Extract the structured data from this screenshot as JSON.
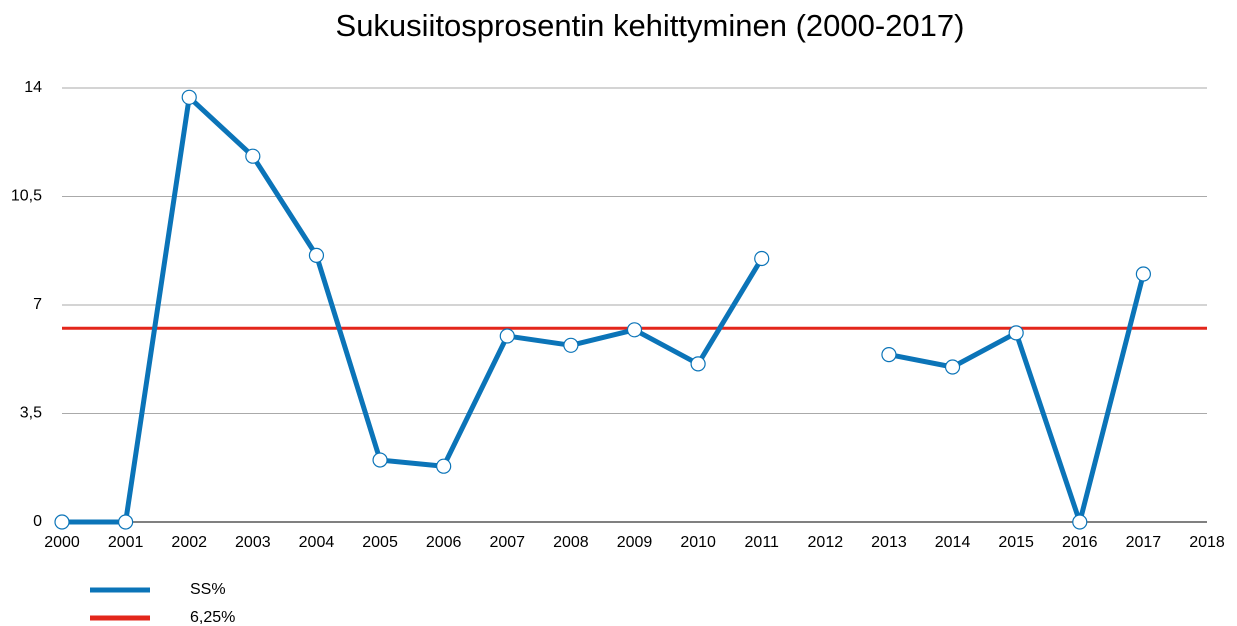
{
  "chart_data": {
    "type": "line",
    "title": "Sukusiitosprosentin kehittyminen (2000-2017)",
    "x": [
      2000,
      2001,
      2002,
      2003,
      2004,
      2005,
      2006,
      2007,
      2008,
      2009,
      2010,
      2011,
      2012,
      2013,
      2014,
      2015,
      2016,
      2017,
      2018
    ],
    "series": [
      {
        "name": "SS%",
        "color": "#0b74b8",
        "values": [
          0,
          0,
          13.7,
          11.8,
          8.6,
          2.0,
          1.8,
          6.0,
          5.7,
          6.2,
          5.1,
          8.5,
          null,
          5.4,
          5.0,
          6.1,
          0,
          8.0,
          null
        ]
      }
    ],
    "hline": {
      "name": "6,25%",
      "value": 6.25,
      "color": "#e3261b"
    },
    "xlim": [
      2000,
      2018
    ],
    "xticks": [
      2000,
      2001,
      2002,
      2003,
      2004,
      2005,
      2006,
      2007,
      2008,
      2009,
      2010,
      2011,
      2012,
      2013,
      2014,
      2015,
      2016,
      2017,
      2018
    ],
    "ylim": [
      0,
      14
    ],
    "yticks": [
      0,
      {
        "value": 3.5,
        "label": "3,5"
      },
      7,
      {
        "value": 10.5,
        "label": "10,5"
      },
      14
    ],
    "grid": true
  }
}
